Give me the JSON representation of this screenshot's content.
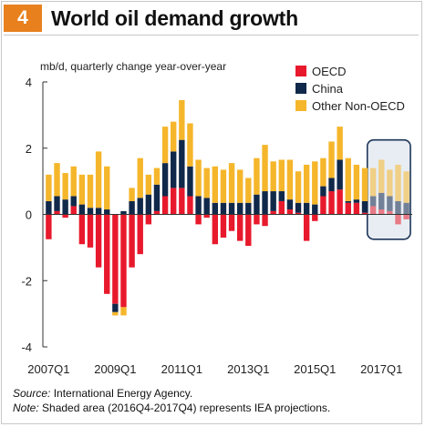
{
  "header": {
    "number": "4",
    "title": "World oil demand growth"
  },
  "chart_data": {
    "type": "bar",
    "stacked": true,
    "ylabel": "mb/d, quarterly change year-over-year",
    "ylim": [
      -4,
      4
    ],
    "yticks": [
      "4",
      "2",
      "0",
      "-2",
      "-4"
    ],
    "x_tick_labels": [
      "2007Q1",
      "2009Q1",
      "2011Q1",
      "2013Q1",
      "2015Q1",
      "2017Q1"
    ],
    "categories": [
      "2007Q1",
      "2007Q2",
      "2007Q3",
      "2007Q4",
      "2008Q1",
      "2008Q2",
      "2008Q3",
      "2008Q4",
      "2009Q1",
      "2009Q2",
      "2009Q3",
      "2009Q4",
      "2010Q1",
      "2010Q2",
      "2010Q3",
      "2010Q4",
      "2011Q1",
      "2011Q2",
      "2011Q3",
      "2011Q4",
      "2012Q1",
      "2012Q2",
      "2012Q3",
      "2012Q4",
      "2013Q1",
      "2013Q2",
      "2013Q3",
      "2013Q4",
      "2014Q1",
      "2014Q2",
      "2014Q3",
      "2014Q4",
      "2015Q1",
      "2015Q2",
      "2015Q3",
      "2015Q4",
      "2016Q1",
      "2016Q2",
      "2016Q3",
      "2016Q4",
      "2017Q1",
      "2017Q2",
      "2017Q3",
      "2017Q4"
    ],
    "series": [
      {
        "name": "OECD",
        "color": "#e8192c",
        "values": [
          -0.75,
          0.1,
          -0.1,
          0.25,
          -0.9,
          -1.0,
          -1.6,
          -2.4,
          -2.7,
          -2.8,
          -1.6,
          -1.2,
          -0.3,
          0.1,
          0.55,
          0.8,
          0.8,
          0.55,
          -0.3,
          -0.1,
          -0.9,
          -0.7,
          -0.5,
          -0.8,
          -0.95,
          -0.3,
          -0.35,
          0.1,
          0.4,
          0.15,
          0.05,
          -0.8,
          -0.2,
          0.55,
          0.7,
          0.75,
          0.35,
          0.35,
          0.05,
          0.25,
          0.15,
          0.1,
          -0.3,
          -0.15
        ]
      },
      {
        "name": "China",
        "color": "#10284a",
        "values": [
          0.4,
          0.45,
          0.45,
          0.3,
          0.3,
          0.2,
          0.2,
          0.15,
          -0.25,
          0.1,
          0.4,
          0.5,
          0.6,
          0.8,
          1.0,
          1.1,
          1.45,
          0.9,
          0.55,
          0.5,
          0.35,
          0.35,
          0.35,
          0.35,
          0.35,
          0.6,
          0.7,
          0.6,
          0.3,
          0.3,
          0.3,
          0.35,
          0.3,
          0.3,
          0.4,
          0.9,
          0.05,
          0.1,
          0.35,
          0.3,
          0.5,
          0.45,
          0.4,
          0.35
        ]
      },
      {
        "name": "Other Non-OECD",
        "color": "#f5b62b",
        "values": [
          0.8,
          1.0,
          0.8,
          0.9,
          0.9,
          1.0,
          1.7,
          1.3,
          -0.1,
          -0.25,
          0.4,
          1.2,
          0.6,
          0.5,
          1.1,
          0.9,
          1.2,
          1.3,
          1.1,
          0.9,
          1.1,
          1.0,
          1.2,
          1.0,
          0.75,
          1.1,
          1.4,
          0.9,
          0.95,
          1.2,
          0.95,
          1.15,
          1.3,
          0.85,
          1.1,
          1.0,
          1.3,
          1.05,
          1.0,
          0.85,
          1.0,
          0.8,
          1.1,
          0.95
        ]
      }
    ],
    "projection_start_index": 39,
    "legend_position": "top-right",
    "grid": false
  },
  "footer": {
    "source_label": "Source:",
    "source_text": " International Energy Agency.",
    "note_label": "Note:",
    "note_text": " Shaded area (2016Q4-2017Q4) represents IEA projections."
  }
}
